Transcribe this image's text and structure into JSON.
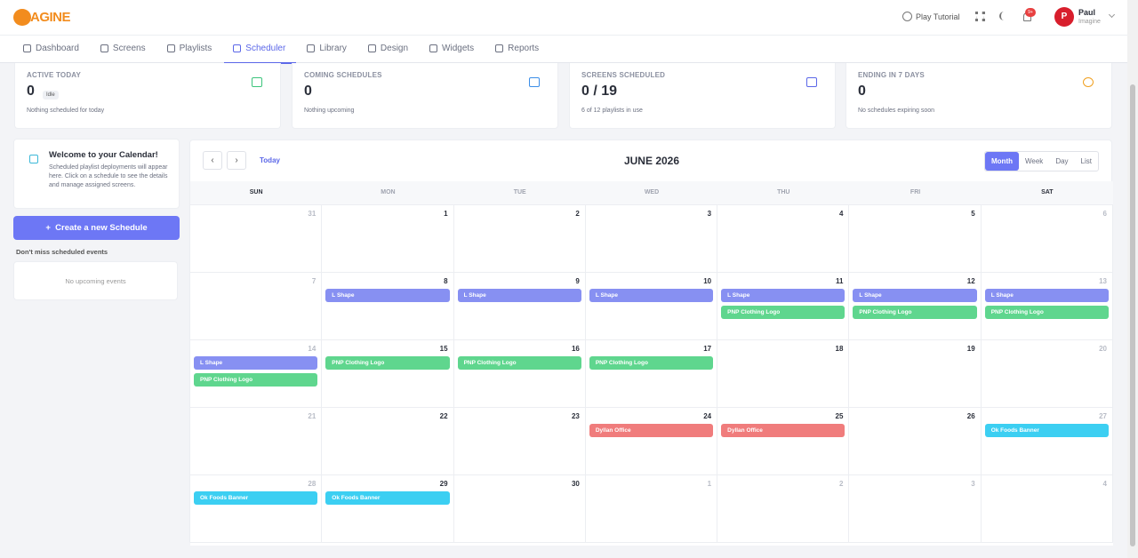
{
  "header": {
    "logo": "AGINE",
    "play_tutorial": "Play Tutorial",
    "badge": "9+",
    "user": {
      "initial": "P",
      "name": "Paul",
      "org": "Imagine"
    }
  },
  "nav": {
    "active": 3,
    "items": [
      "Dashboard",
      "Screens",
      "Playlists",
      "Scheduler",
      "Library",
      "Design",
      "Widgets",
      "Reports"
    ]
  },
  "stats": [
    {
      "label": "ACTIVE TODAY",
      "value": "0",
      "badge": "Idle",
      "note": "Nothing scheduled for today",
      "color": "#3cc47c"
    },
    {
      "label": "COMING SCHEDULES",
      "value": "0",
      "note": "Nothing upcoming",
      "color": "#3c8ee8"
    },
    {
      "label": "SCREENS SCHEDULED",
      "value": "0 / 19",
      "note": "6 of 12 playlists in use",
      "color": "#5b67e8"
    },
    {
      "label": "ENDING IN 7 DAYS",
      "value": "0",
      "note": "No schedules expiring soon",
      "color": "#f0a020"
    }
  ],
  "sidebar": {
    "welcome_title": "Welcome to your Calendar!",
    "welcome_text": "Scheduled playlist deployments will appear here. Click on a schedule to see the details and manage assigned screens.",
    "create_button": "Create a new Schedule",
    "upcoming_title": "Don't miss scheduled events",
    "upcoming_empty": "No upcoming events"
  },
  "calendar": {
    "title": "JUNE 2026",
    "today": "Today",
    "views": [
      "Month",
      "Week",
      "Day",
      "List"
    ],
    "active_view": 0,
    "weekdays": [
      "SUN",
      "MON",
      "TUE",
      "WED",
      "THU",
      "FRI",
      "SAT"
    ],
    "weeks": [
      [
        {
          "day": 31,
          "other_month": true,
          "events": []
        },
        {
          "day": 1,
          "events": []
        },
        {
          "day": 2,
          "events": []
        },
        {
          "day": 3,
          "events": []
        },
        {
          "day": 4,
          "events": []
        },
        {
          "day": 5,
          "events": []
        },
        {
          "day": 6,
          "events": []
        }
      ],
      [
        {
          "day": 7,
          "events": []
        },
        {
          "day": 8,
          "events": [
            {
              "title": "L Shape",
              "color": "#8790f2"
            }
          ]
        },
        {
          "day": 9,
          "events": [
            {
              "title": "L Shape",
              "color": "#8790f2"
            }
          ]
        },
        {
          "day": 10,
          "events": [
            {
              "title": "L Shape",
              "color": "#8790f2"
            }
          ]
        },
        {
          "day": 11,
          "events": [
            {
              "title": "L Shape",
              "color": "#8790f2"
            },
            {
              "title": "PNP Clothing Logo",
              "color": "#5fd68e"
            }
          ]
        },
        {
          "day": 12,
          "events": [
            {
              "title": "L Shape",
              "color": "#8790f2"
            },
            {
              "title": "PNP Clothing Logo",
              "color": "#5fd68e"
            }
          ]
        },
        {
          "day": 13,
          "events": [
            {
              "title": "L Shape",
              "color": "#8790f2"
            },
            {
              "title": "PNP Clothing Logo",
              "color": "#5fd68e"
            }
          ]
        }
      ],
      [
        {
          "day": 14,
          "events": [
            {
              "title": "L Shape",
              "color": "#8790f2"
            },
            {
              "title": "PNP Clothing Logo",
              "color": "#5fd68e"
            }
          ]
        },
        {
          "day": 15,
          "events": [
            {
              "title": "PNP Clothing Logo",
              "color": "#5fd68e"
            }
          ]
        },
        {
          "day": 16,
          "events": [
            {
              "title": "PNP Clothing Logo",
              "color": "#5fd68e"
            }
          ]
        },
        {
          "day": 17,
          "events": [
            {
              "title": "PNP Clothing Logo",
              "color": "#5fd68e"
            }
          ]
        },
        {
          "day": 18,
          "events": []
        },
        {
          "day": 19,
          "events": []
        },
        {
          "day": 20,
          "events": []
        }
      ],
      [
        {
          "day": 21,
          "events": []
        },
        {
          "day": 22,
          "events": []
        },
        {
          "day": 23,
          "events": []
        },
        {
          "day": 24,
          "events": [
            {
              "title": "Dyllan Office",
              "color": "#f07c7c"
            }
          ]
        },
        {
          "day": 25,
          "events": [
            {
              "title": "Dyllan Office",
              "color": "#f07c7c"
            }
          ]
        },
        {
          "day": 26,
          "events": []
        },
        {
          "day": 27,
          "events": [
            {
              "title": "Ok Foods Banner",
              "color": "#3ccff2"
            }
          ]
        }
      ],
      [
        {
          "day": 28,
          "events": [
            {
              "title": "Ok Foods Banner",
              "color": "#3ccff2"
            }
          ]
        },
        {
          "day": 29,
          "events": [
            {
              "title": "Ok Foods Banner",
              "color": "#3ccff2"
            }
          ]
        },
        {
          "day": 30,
          "events": []
        },
        {
          "day": 1,
          "other_month": true,
          "events": []
        },
        {
          "day": 2,
          "other_month": true,
          "events": []
        },
        {
          "day": 3,
          "other_month": true,
          "events": []
        },
        {
          "day": 4,
          "other_month": true,
          "events": []
        }
      ]
    ]
  }
}
